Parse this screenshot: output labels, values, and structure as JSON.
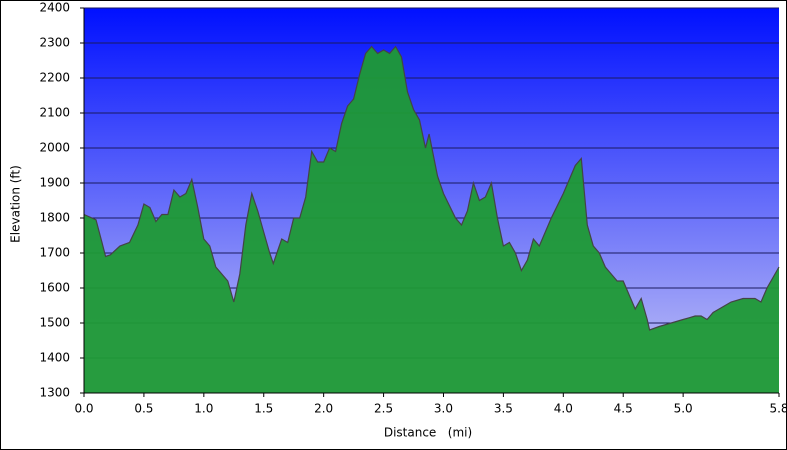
{
  "chart_data": {
    "type": "area",
    "x_label": "Distance   (mi)",
    "y_label": "Elevation (ft)",
    "x": [
      0.0,
      0.1,
      0.15,
      0.18,
      0.22,
      0.3,
      0.38,
      0.45,
      0.5,
      0.55,
      0.6,
      0.65,
      0.7,
      0.75,
      0.8,
      0.85,
      0.9,
      0.95,
      1.0,
      1.05,
      1.1,
      1.15,
      1.2,
      1.25,
      1.3,
      1.35,
      1.4,
      1.45,
      1.5,
      1.55,
      1.58,
      1.65,
      1.7,
      1.75,
      1.8,
      1.85,
      1.9,
      1.95,
      2.0,
      2.05,
      2.1,
      2.15,
      2.2,
      2.25,
      2.3,
      2.35,
      2.4,
      2.45,
      2.5,
      2.55,
      2.6,
      2.65,
      2.7,
      2.75,
      2.8,
      2.85,
      2.88,
      2.95,
      3.0,
      3.1,
      3.15,
      3.2,
      3.25,
      3.3,
      3.35,
      3.4,
      3.45,
      3.5,
      3.55,
      3.6,
      3.65,
      3.7,
      3.75,
      3.8,
      3.85,
      3.9,
      4.0,
      4.05,
      4.1,
      4.15,
      4.2,
      4.25,
      4.3,
      4.35,
      4.4,
      4.45,
      4.5,
      4.55,
      4.6,
      4.65,
      4.7,
      4.72,
      4.8,
      4.9,
      5.0,
      5.05,
      5.1,
      5.15,
      5.2,
      5.25,
      5.3,
      5.4,
      5.5,
      5.6,
      5.65,
      5.7,
      5.75,
      5.8
    ],
    "values": [
      1810,
      1795,
      1730,
      1690,
      1695,
      1720,
      1730,
      1780,
      1840,
      1830,
      1790,
      1810,
      1810,
      1880,
      1860,
      1870,
      1910,
      1830,
      1740,
      1720,
      1660,
      1640,
      1620,
      1560,
      1640,
      1780,
      1870,
      1820,
      1760,
      1700,
      1670,
      1740,
      1730,
      1800,
      1800,
      1860,
      1990,
      1960,
      1960,
      2000,
      1990,
      2070,
      2120,
      2140,
      2210,
      2270,
      2290,
      2270,
      2280,
      2270,
      2290,
      2260,
      2160,
      2110,
      2080,
      2000,
      2040,
      1920,
      1870,
      1800,
      1780,
      1820,
      1900,
      1850,
      1860,
      1900,
      1800,
      1720,
      1730,
      1700,
      1650,
      1680,
      1740,
      1720,
      1760,
      1800,
      1870,
      1910,
      1950,
      1970,
      1780,
      1720,
      1700,
      1660,
      1640,
      1620,
      1620,
      1580,
      1540,
      1570,
      1510,
      1480,
      1490,
      1500,
      1510,
      1515,
      1520,
      1520,
      1510,
      1530,
      1540,
      1560,
      1570,
      1570,
      1560,
      1600,
      1630,
      1660
    ],
    "color": "#1f9a35",
    "xlim": [
      0,
      5.8
    ],
    "xticks": [
      {
        "value": 0,
        "label": "0.0"
      },
      0.5,
      {
        "value": 1,
        "label": "1.0"
      },
      1.5,
      {
        "value": 2,
        "label": "2.0"
      },
      2.5,
      {
        "value": 3,
        "label": "3.0"
      },
      3.5,
      {
        "value": 4,
        "label": "4.0"
      },
      4.5,
      {
        "value": 5,
        "label": "5.0"
      },
      5.8
    ],
    "ylim": [
      1300,
      2400
    ],
    "yticks": [
      1300,
      1400,
      1500,
      1600,
      1700,
      1800,
      1900,
      2000,
      2100,
      2200,
      2300,
      2400
    ],
    "grid": true
  }
}
